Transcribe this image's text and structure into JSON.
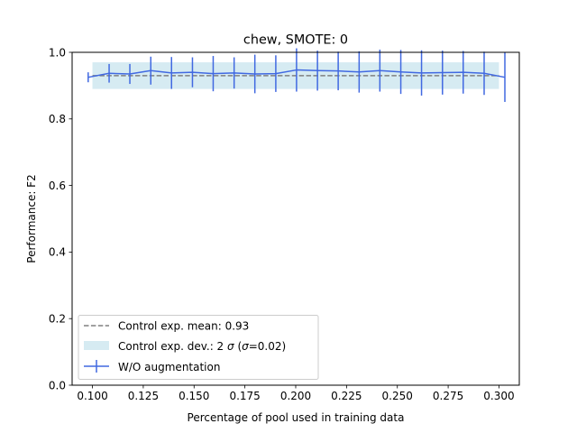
{
  "chart_data": {
    "type": "line",
    "title": "chew, SMOTE: 0",
    "xlabel": "Percentage of pool used in training data",
    "ylabel": "Performance: F2",
    "xlim": [
      0.09,
      0.31
    ],
    "ylim": [
      0.0,
      1.0
    ],
    "xticks": [
      0.1,
      0.125,
      0.15,
      0.175,
      0.2,
      0.225,
      0.25,
      0.275,
      0.3
    ],
    "xtick_labels": [
      "0.100",
      "0.125",
      "0.150",
      "0.175",
      "0.200",
      "0.225",
      "0.250",
      "0.275",
      "0.300"
    ],
    "yticks": [
      0.0,
      0.2,
      0.4,
      0.6,
      0.8,
      1.0
    ],
    "ytick_labels": [
      "0.0",
      "0.2",
      "0.4",
      "0.6",
      "0.8",
      "1.0"
    ],
    "grid": false,
    "legend_position": "lower-left",
    "control": {
      "mean": 0.93,
      "sigma": 0.02,
      "band": [
        0.89,
        0.97
      ],
      "x_range": [
        0.1,
        0.3
      ],
      "mean_label": "Control exp. mean: 0.93",
      "dev_label_prefix": "Control exp. dev.: 2 ",
      "dev_label_sigma1": "σ",
      "dev_label_mid": " (",
      "dev_label_sigma2": "σ",
      "dev_label_suffix": "=0.02)",
      "mean_color": "#808080",
      "band_color": "#add8e6"
    },
    "series": [
      {
        "name": "W/O augmentation",
        "color": "#4169e1",
        "x": [
          0.0979,
          0.1082,
          0.1184,
          0.1287,
          0.1389,
          0.1492,
          0.1594,
          0.1697,
          0.1799,
          0.1902,
          0.2004,
          0.2107,
          0.2209,
          0.2312,
          0.2414,
          0.2517,
          0.2619,
          0.2722,
          0.2824,
          0.2927,
          0.3029
        ],
        "y": [
          0.925,
          0.937,
          0.935,
          0.945,
          0.938,
          0.94,
          0.936,
          0.938,
          0.935,
          0.936,
          0.947,
          0.945,
          0.944,
          0.941,
          0.945,
          0.941,
          0.938,
          0.939,
          0.94,
          0.937,
          0.925
        ],
        "err": [
          0.015,
          0.028,
          0.03,
          0.042,
          0.048,
          0.045,
          0.053,
          0.047,
          0.058,
          0.055,
          0.065,
          0.06,
          0.058,
          0.062,
          0.063,
          0.066,
          0.068,
          0.066,
          0.064,
          0.065,
          0.074
        ]
      }
    ]
  }
}
